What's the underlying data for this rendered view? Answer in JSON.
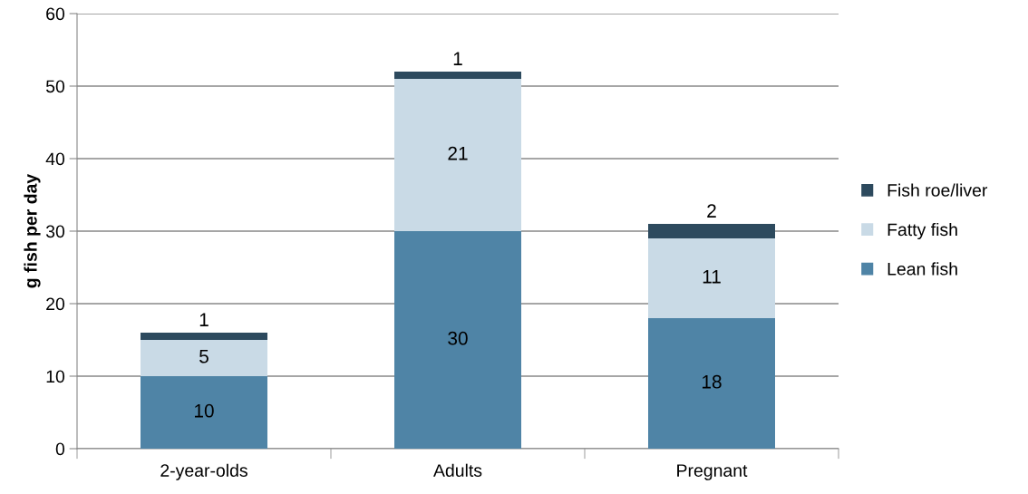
{
  "chart_data": {
    "type": "bar",
    "stacked": true,
    "ylabel": "g fish per day",
    "categories": [
      "2-year-olds",
      "Adults",
      "Pregnant"
    ],
    "series": [
      {
        "name": "Lean fish",
        "color": "#4f84a6",
        "values": [
          10,
          30,
          18
        ]
      },
      {
        "name": "Fatty fish",
        "color": "#c9dae6",
        "values": [
          5,
          21,
          11
        ]
      },
      {
        "name": "Fish roe/liver",
        "color": "#2d4a5e",
        "values": [
          1,
          1,
          2
        ]
      }
    ],
    "ylim": [
      0,
      60
    ],
    "yticks": [
      0,
      10,
      20,
      30,
      40,
      50,
      60
    ],
    "grid": "y",
    "legend": "right",
    "data_labels": true
  }
}
